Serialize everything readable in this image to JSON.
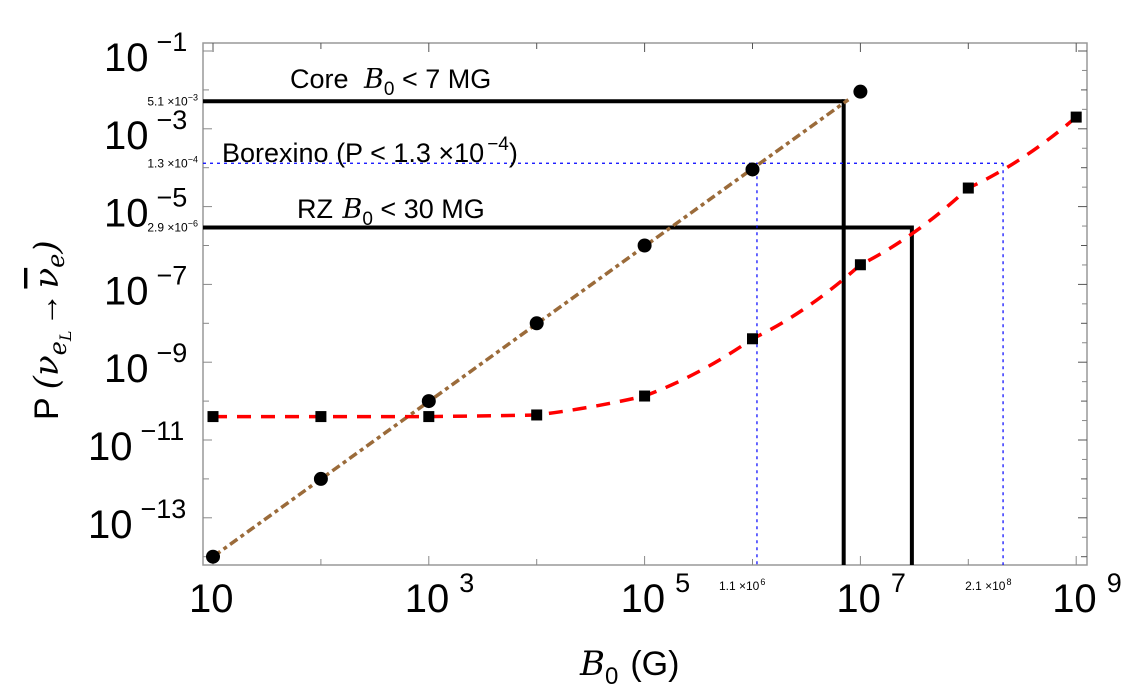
{
  "chart_data": {
    "type": "scatter",
    "title": "",
    "xlabel": {
      "symbol": "B",
      "sub": "0",
      "unit": "(G)"
    },
    "ylabel": {
      "prefix": "P",
      "open": "(",
      "nu": "ν",
      "e": "e",
      "L": "L",
      "arrow": "→",
      "nubar": "ν",
      "e2": "e",
      "close": ")"
    },
    "xscale": "log",
    "yscale": "log",
    "xlim_log10": [
      0.9,
      9.1
    ],
    "ylim_log10": [
      -14.5,
      -0.8
    ],
    "x_ticks": [
      {
        "base": "10",
        "exp": "",
        "log10": 1
      },
      {
        "base": "10",
        "exp": "3",
        "log10": 3
      },
      {
        "base": "10",
        "exp": "5",
        "log10": 5
      },
      {
        "base": "10",
        "exp": "7",
        "log10": 7
      },
      {
        "base": "10",
        "exp": "9",
        "log10": 9
      }
    ],
    "y_ticks": [
      {
        "base": "10",
        "exp": "−1",
        "log10": -1
      },
      {
        "base": "10",
        "exp": "−3",
        "log10": -3
      },
      {
        "base": "10",
        "exp": "−5",
        "log10": -5
      },
      {
        "base": "10",
        "exp": "−7",
        "log10": -7
      },
      {
        "base": "10",
        "exp": "−9",
        "log10": -9
      },
      {
        "base": "10",
        "exp": "−11",
        "log10": -11
      },
      {
        "base": "10",
        "exp": "−13",
        "log10": -13
      }
    ],
    "series": [
      {
        "name": "circles",
        "marker": "circle",
        "line_style": "dash-dot",
        "color": "#9b6b3a",
        "x": [
          10,
          100,
          1000,
          10000,
          100000,
          1000000,
          10000000
        ],
        "y": [
          1e-14,
          1e-12,
          1e-10,
          1e-08,
          1e-06,
          9e-05,
          0.009
        ]
      },
      {
        "name": "squares",
        "marker": "square",
        "line_style": "dashed",
        "color": "#ff0000",
        "x": [
          10,
          100,
          1000,
          10000,
          100000,
          1000000,
          10000000,
          100000000,
          1000000000
        ],
        "y": [
          4e-11,
          4e-11,
          4e-11,
          4.4e-11,
          1.35e-10,
          4e-09,
          3.2e-07,
          3e-05,
          0.002
        ]
      }
    ],
    "reference_lines": [
      {
        "name": "core-limit",
        "kind": "solid",
        "color": "#000000",
        "y": 0.0051,
        "x_end": 7000000.0,
        "y_label": {
          "mant": "5.1 ×10",
          "exp": "−3"
        },
        "annotation": {
          "pre": "Core ",
          "sym": "B",
          "sub": "0",
          "post": " < 7  MG"
        }
      },
      {
        "name": "rz-limit",
        "kind": "solid",
        "color": "#000000",
        "y": 2.9e-06,
        "x_end": 30000000.0,
        "y_label": {
          "mant": "2.9 ×10",
          "exp": "−6"
        },
        "annotation": {
          "pre": "RZ ",
          "sym": "B",
          "sub": "0",
          "post": " < 30  MG"
        }
      },
      {
        "name": "borexino-limit",
        "kind": "dotted",
        "color": "#0000ff",
        "y": 0.00013,
        "x_end": 210000000.0,
        "y_label": {
          "mant": "1.3 ×10",
          "exp": "−4"
        },
        "annotation": {
          "text": "Borexino   (P < 1.3 ×10",
          "exp": "−4",
          "close": ")"
        }
      }
    ],
    "vertical_markers": [
      {
        "name": "borexino-core-x",
        "x": 1100000.0,
        "color": "#0000ff",
        "label": {
          "mant": "1.1 ×10",
          "exp": "6"
        }
      },
      {
        "name": "borexino-rz-x",
        "x": 210000000.0,
        "color": "#0000ff",
        "label": {
          "mant": "2.1 ×10",
          "exp": "8"
        }
      }
    ],
    "grid": false,
    "legend": "none"
  }
}
